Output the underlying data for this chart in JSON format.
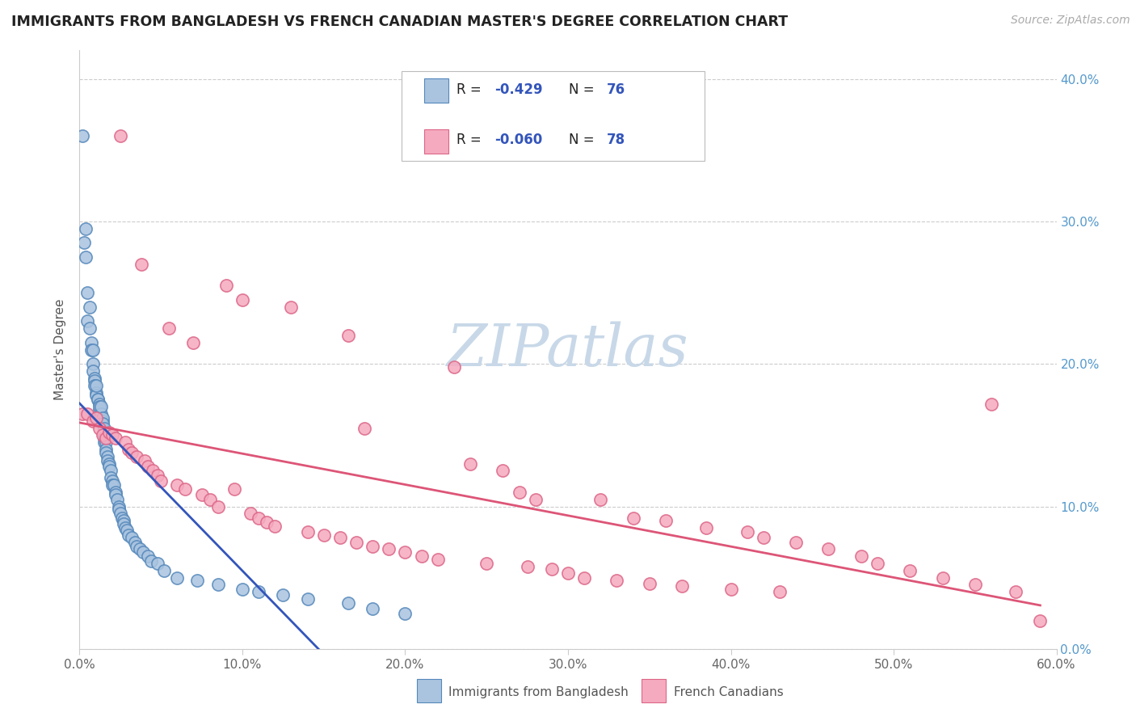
{
  "title": "IMMIGRANTS FROM BANGLADESH VS FRENCH CANADIAN MASTER'S DEGREE CORRELATION CHART",
  "source": "Source: ZipAtlas.com",
  "ylabel": "Master's Degree",
  "xlim": [
    0.0,
    0.6
  ],
  "ylim": [
    0.0,
    0.42
  ],
  "xticks": [
    0.0,
    0.1,
    0.2,
    0.3,
    0.4,
    0.5,
    0.6
  ],
  "xtick_labels": [
    "0.0%",
    "10.0%",
    "20.0%",
    "30.0%",
    "40.0%",
    "50.0%",
    "60.0%"
  ],
  "yticks": [
    0.0,
    0.1,
    0.2,
    0.3,
    0.4
  ],
  "ytick_labels_right": [
    "0.0%",
    "10.0%",
    "20.0%",
    "30.0%",
    "40.0%"
  ],
  "r1_label": "R = ",
  "r1_val": "-0.429",
  "n1_label": "N = ",
  "n1_val": "76",
  "r2_label": "R = ",
  "r2_val": "-0.060",
  "n2_label": "N = ",
  "n2_val": "78",
  "series1_color": "#aac4e0",
  "series1_edge": "#5588bb",
  "series2_color": "#f5aabf",
  "series2_edge": "#dd6688",
  "trend1_color": "#3355bb",
  "trend2_color": "#dd5577",
  "bg_color": "#ffffff",
  "grid_color": "#cccccc",
  "watermark_color": "#c8d8e8",
  "bangladesh_x": [
    0.002,
    0.003,
    0.004,
    0.004,
    0.005,
    0.005,
    0.006,
    0.006,
    0.007,
    0.007,
    0.008,
    0.008,
    0.008,
    0.009,
    0.009,
    0.009,
    0.01,
    0.01,
    0.01,
    0.011,
    0.011,
    0.012,
    0.012,
    0.012,
    0.013,
    0.013,
    0.014,
    0.014,
    0.014,
    0.015,
    0.015,
    0.015,
    0.015,
    0.016,
    0.016,
    0.016,
    0.017,
    0.017,
    0.018,
    0.018,
    0.019,
    0.019,
    0.02,
    0.02,
    0.021,
    0.022,
    0.022,
    0.023,
    0.024,
    0.024,
    0.025,
    0.026,
    0.027,
    0.027,
    0.028,
    0.029,
    0.03,
    0.032,
    0.034,
    0.035,
    0.037,
    0.039,
    0.042,
    0.044,
    0.048,
    0.052,
    0.06,
    0.072,
    0.085,
    0.1,
    0.11,
    0.125,
    0.14,
    0.165,
    0.18,
    0.2
  ],
  "bangladesh_y": [
    0.36,
    0.285,
    0.295,
    0.275,
    0.25,
    0.23,
    0.24,
    0.225,
    0.215,
    0.21,
    0.21,
    0.2,
    0.195,
    0.19,
    0.188,
    0.185,
    0.18,
    0.178,
    0.185,
    0.175,
    0.175,
    0.172,
    0.168,
    0.17,
    0.165,
    0.17,
    0.16,
    0.162,
    0.158,
    0.15,
    0.155,
    0.148,
    0.145,
    0.145,
    0.14,
    0.138,
    0.135,
    0.132,
    0.13,
    0.128,
    0.125,
    0.12,
    0.118,
    0.115,
    0.115,
    0.11,
    0.108,
    0.105,
    0.1,
    0.098,
    0.095,
    0.092,
    0.09,
    0.088,
    0.085,
    0.083,
    0.08,
    0.078,
    0.075,
    0.072,
    0.07,
    0.068,
    0.065,
    0.062,
    0.06,
    0.055,
    0.05,
    0.048,
    0.045,
    0.042,
    0.04,
    0.038,
    0.035,
    0.032,
    0.028,
    0.025
  ],
  "french_x": [
    0.002,
    0.005,
    0.008,
    0.01,
    0.012,
    0.014,
    0.016,
    0.018,
    0.02,
    0.022,
    0.025,
    0.028,
    0.03,
    0.032,
    0.035,
    0.038,
    0.04,
    0.042,
    0.045,
    0.048,
    0.05,
    0.055,
    0.06,
    0.065,
    0.07,
    0.075,
    0.08,
    0.085,
    0.09,
    0.095,
    0.1,
    0.105,
    0.11,
    0.115,
    0.12,
    0.13,
    0.14,
    0.15,
    0.16,
    0.165,
    0.17,
    0.175,
    0.18,
    0.19,
    0.2,
    0.21,
    0.22,
    0.23,
    0.24,
    0.25,
    0.26,
    0.27,
    0.275,
    0.28,
    0.29,
    0.3,
    0.31,
    0.32,
    0.33,
    0.34,
    0.35,
    0.36,
    0.37,
    0.385,
    0.4,
    0.41,
    0.42,
    0.43,
    0.44,
    0.46,
    0.48,
    0.49,
    0.51,
    0.53,
    0.55,
    0.56,
    0.575,
    0.59
  ],
  "french_y": [
    0.165,
    0.165,
    0.16,
    0.162,
    0.155,
    0.15,
    0.148,
    0.152,
    0.15,
    0.148,
    0.36,
    0.145,
    0.14,
    0.138,
    0.135,
    0.27,
    0.132,
    0.128,
    0.125,
    0.122,
    0.118,
    0.225,
    0.115,
    0.112,
    0.215,
    0.108,
    0.105,
    0.1,
    0.255,
    0.112,
    0.245,
    0.095,
    0.092,
    0.089,
    0.086,
    0.24,
    0.082,
    0.08,
    0.078,
    0.22,
    0.075,
    0.155,
    0.072,
    0.07,
    0.068,
    0.065,
    0.063,
    0.198,
    0.13,
    0.06,
    0.125,
    0.11,
    0.058,
    0.105,
    0.056,
    0.053,
    0.05,
    0.105,
    0.048,
    0.092,
    0.046,
    0.09,
    0.044,
    0.085,
    0.042,
    0.082,
    0.078,
    0.04,
    0.075,
    0.07,
    0.065,
    0.06,
    0.055,
    0.05,
    0.045,
    0.172,
    0.04,
    0.02
  ]
}
